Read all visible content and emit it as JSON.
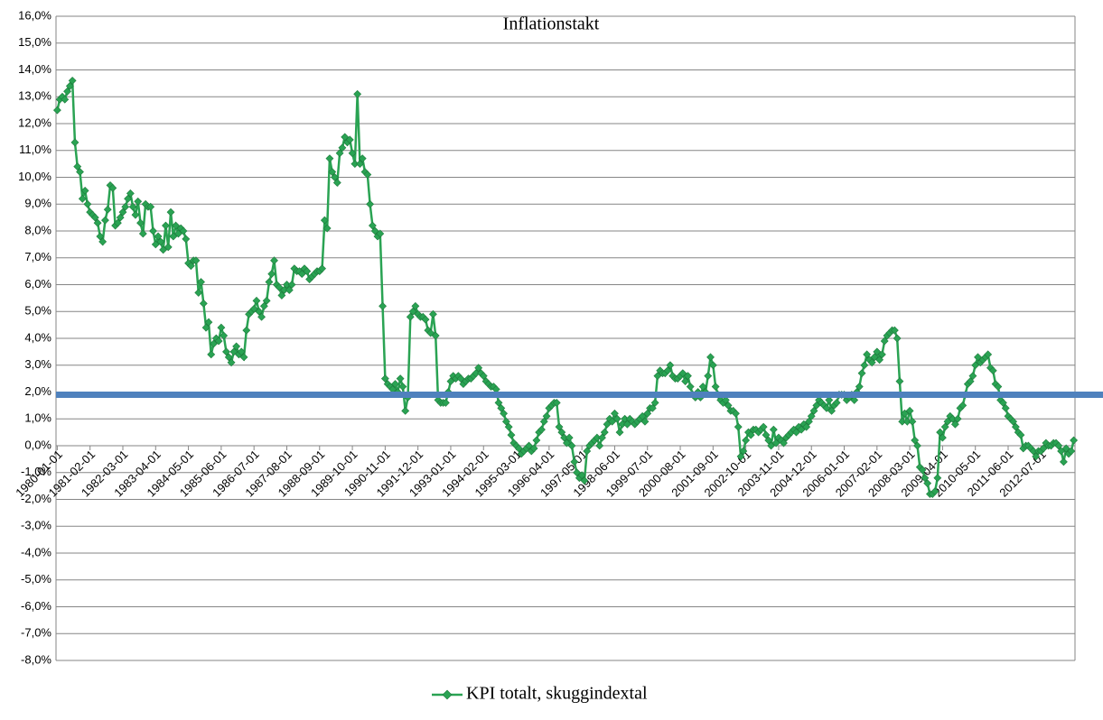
{
  "chart_data": {
    "type": "line",
    "title": "Inflationstakt",
    "categories": [
      "1980-01-01",
      null,
      null,
      null,
      null,
      null,
      null,
      null,
      null,
      null,
      null,
      null,
      null,
      "1981-02-01",
      null,
      null,
      null,
      null,
      null,
      null,
      null,
      null,
      null,
      null,
      null,
      null,
      "1982-03-01",
      null,
      null,
      null,
      null,
      null,
      null,
      null,
      null,
      null,
      null,
      null,
      null,
      "1983-04-01",
      null,
      null,
      null,
      null,
      null,
      null,
      null,
      null,
      null,
      null,
      null,
      null,
      "1984-05-01",
      null,
      null,
      null,
      null,
      null,
      null,
      null,
      null,
      null,
      null,
      null,
      null,
      "1985-06-01",
      null,
      null,
      null,
      null,
      null,
      null,
      null,
      null,
      null,
      null,
      null,
      null,
      "1986-07-01",
      null,
      null,
      null,
      null,
      null,
      null,
      null,
      null,
      null,
      null,
      null,
      null,
      "1987-08-01",
      null,
      null,
      null,
      null,
      null,
      null,
      null,
      null,
      null,
      null,
      null,
      null,
      "1988-09-01",
      null,
      null,
      null,
      null,
      null,
      null,
      null,
      null,
      null,
      null,
      null,
      null,
      "1989-10-01",
      null,
      null,
      null,
      null,
      null,
      null,
      null,
      null,
      null,
      null,
      null,
      null,
      "1990-11-01",
      null,
      null,
      null,
      null,
      null,
      null,
      null,
      null,
      null,
      null,
      null,
      null,
      "1991-12-01",
      null,
      null,
      null,
      null,
      null,
      null,
      null,
      null,
      null,
      null,
      null,
      null,
      "1993-01-01",
      null,
      null,
      null,
      null,
      null,
      null,
      null,
      null,
      null,
      null,
      null,
      null,
      "1994-02-01",
      null,
      null,
      null,
      null,
      null,
      null,
      null,
      null,
      null,
      null,
      null,
      null,
      "1995-03-01",
      null,
      null,
      null,
      null,
      null,
      null,
      null,
      null,
      null,
      null,
      null,
      null,
      "1996-04-01",
      null,
      null,
      null,
      null,
      null,
      null,
      null,
      null,
      null,
      null,
      null,
      null,
      "1997-05-01",
      null,
      null,
      null,
      null,
      null,
      null,
      null,
      null,
      null,
      null,
      null,
      null,
      "1998-06-01",
      null,
      null,
      null,
      null,
      null,
      null,
      null,
      null,
      null,
      null,
      null,
      null,
      "1999-07-01",
      null,
      null,
      null,
      null,
      null,
      null,
      null,
      null,
      null,
      null,
      null,
      null,
      "2000-08-01",
      null,
      null,
      null,
      null,
      null,
      null,
      null,
      null,
      null,
      null,
      null,
      null,
      "2001-09-01",
      null,
      null,
      null,
      null,
      null,
      null,
      null,
      null,
      null,
      null,
      null,
      null,
      "2002-10-01",
      null,
      null,
      null,
      null,
      null,
      null,
      null,
      null,
      null,
      null,
      null,
      null,
      "2003-11-01",
      null,
      null,
      null,
      null,
      null,
      null,
      null,
      null,
      null,
      null,
      null,
      null,
      "2004-12-01",
      null,
      null,
      null,
      null,
      null,
      null,
      null,
      null,
      null,
      null,
      null,
      null,
      "2006-01-01",
      null,
      null,
      null,
      null,
      null,
      null,
      null,
      null,
      null,
      null,
      null,
      null,
      "2007-02-01",
      null,
      null,
      null,
      null,
      null,
      null,
      null,
      null,
      null,
      null,
      null,
      null,
      "2008-03-01",
      null,
      null,
      null,
      null,
      null,
      null,
      null,
      null,
      null,
      null,
      null,
      null,
      "2009-04-01",
      null,
      null,
      null,
      null,
      null,
      null,
      null,
      null,
      null,
      null,
      null,
      null,
      "2010-05-01",
      null,
      null,
      null,
      null,
      null,
      null,
      null,
      null,
      null,
      null,
      null,
      null,
      "2011-06-01",
      null,
      null,
      null,
      null,
      null,
      null,
      null,
      null,
      null,
      null,
      null,
      null,
      "2012-07-01",
      null,
      null,
      null,
      null,
      null,
      null,
      null,
      null,
      null,
      null,
      null,
      null,
      null
    ],
    "series": [
      {
        "name": "KPI totalt, skuggindextal",
        "color": "#2aa353",
        "values": [
          12.5,
          12.9,
          13.0,
          12.9,
          13.2,
          13.4,
          13.6,
          11.3,
          10.4,
          10.2,
          9.2,
          9.5,
          9.0,
          8.7,
          8.6,
          8.5,
          8.3,
          7.8,
          7.6,
          8.4,
          8.8,
          9.7,
          9.6,
          8.2,
          8.3,
          8.5,
          8.7,
          8.9,
          9.2,
          9.4,
          8.9,
          8.6,
          9.1,
          8.3,
          7.9,
          9.0,
          8.9,
          8.9,
          8.0,
          7.5,
          7.8,
          7.6,
          7.3,
          8.2,
          7.4,
          8.7,
          7.8,
          8.2,
          7.9,
          8.1,
          8.0,
          7.7,
          6.8,
          6.7,
          6.9,
          6.9,
          5.7,
          6.1,
          5.3,
          4.4,
          4.6,
          3.4,
          3.8,
          4.0,
          3.9,
          4.4,
          4.1,
          3.5,
          3.3,
          3.1,
          3.5,
          3.7,
          3.4,
          3.5,
          3.3,
          4.3,
          4.9,
          5.0,
          5.1,
          5.4,
          5.0,
          4.8,
          5.2,
          5.4,
          6.1,
          6.4,
          6.9,
          6.0,
          5.9,
          5.6,
          5.8,
          6.0,
          5.8,
          6.0,
          6.6,
          6.5,
          6.5,
          6.4,
          6.6,
          6.5,
          6.2,
          6.3,
          6.4,
          6.5,
          6.5,
          6.6,
          8.4,
          8.1,
          10.7,
          10.2,
          10.0,
          9.8,
          10.9,
          11.1,
          11.5,
          11.3,
          11.4,
          10.9,
          10.5,
          13.1,
          10.5,
          10.7,
          10.2,
          10.1,
          9.0,
          8.2,
          8.0,
          7.8,
          7.9,
          5.2,
          2.5,
          2.3,
          2.2,
          2.1,
          2.3,
          2.0,
          2.5,
          2.2,
          1.3,
          1.8,
          4.8,
          5.0,
          5.2,
          4.9,
          4.8,
          4.8,
          4.7,
          4.3,
          4.2,
          4.9,
          4.1,
          1.7,
          1.6,
          1.6,
          1.6,
          2.0,
          2.4,
          2.6,
          2.5,
          2.6,
          2.5,
          2.3,
          2.4,
          2.5,
          2.5,
          2.6,
          2.7,
          2.9,
          2.7,
          2.6,
          2.4,
          2.3,
          2.2,
          2.2,
          2.1,
          1.6,
          1.4,
          1.2,
          0.9,
          0.7,
          0.4,
          0.1,
          0.0,
          -0.1,
          -0.3,
          -0.2,
          -0.1,
          0.0,
          -0.2,
          -0.1,
          0.2,
          0.5,
          0.6,
          0.9,
          1.1,
          1.4,
          1.5,
          1.6,
          1.6,
          0.7,
          0.5,
          0.3,
          0.1,
          0.3,
          0.0,
          -0.6,
          -1.0,
          -1.2,
          -1.1,
          -1.3,
          -0.2,
          0.0,
          0.1,
          0.2,
          0.3,
          0.0,
          0.3,
          0.5,
          0.8,
          1.0,
          0.9,
          1.2,
          1.0,
          0.5,
          0.8,
          1.0,
          0.8,
          1.0,
          0.9,
          0.8,
          0.9,
          1.0,
          1.1,
          0.9,
          1.2,
          1.4,
          1.4,
          1.6,
          2.6,
          2.8,
          2.7,
          2.7,
          2.8,
          3.0,
          2.6,
          2.5,
          2.5,
          2.6,
          2.7,
          2.4,
          2.6,
          2.2,
          1.9,
          1.8,
          2.0,
          1.8,
          2.2,
          2.0,
          2.6,
          3.3,
          3.0,
          2.2,
          1.9,
          1.7,
          1.6,
          1.7,
          1.5,
          1.3,
          1.3,
          1.2,
          0.7,
          -0.4,
          -0.2,
          0.2,
          0.5,
          0.4,
          0.6,
          0.6,
          0.5,
          0.6,
          0.7,
          0.4,
          0.2,
          0.0,
          0.6,
          0.1,
          0.3,
          0.2,
          0.1,
          0.3,
          0.4,
          0.5,
          0.6,
          0.5,
          0.7,
          0.6,
          0.8,
          0.7,
          0.9,
          1.1,
          1.3,
          1.5,
          1.7,
          1.6,
          1.5,
          1.4,
          1.7,
          1.3,
          1.5,
          1.6,
          1.9,
          1.9,
          1.9,
          1.7,
          1.8,
          1.9,
          1.7,
          2.0,
          2.2,
          2.7,
          3.0,
          3.4,
          3.2,
          3.1,
          3.3,
          3.5,
          3.2,
          3.4,
          3.9,
          4.1,
          4.2,
          4.3,
          4.3,
          4.0,
          2.4,
          0.9,
          1.2,
          0.9,
          1.3,
          0.9,
          0.2,
          0.0,
          -0.8,
          -0.9,
          -1.2,
          -1.4,
          -1.8,
          -1.8,
          -1.7,
          -1.2,
          0.5,
          0.3,
          0.7,
          0.9,
          1.1,
          1.0,
          0.8,
          1.0,
          1.4,
          1.5,
          1.9,
          2.3,
          2.4,
          2.6,
          3.0,
          3.3,
          3.1,
          3.2,
          3.3,
          3.4,
          2.9,
          2.8,
          2.3,
          2.2,
          1.7,
          1.6,
          1.4,
          1.1,
          1.0,
          0.9,
          0.7,
          0.5,
          0.4,
          -0.1,
          0.0,
          0.0,
          -0.1,
          -0.2,
          -0.4,
          -0.2,
          -0.2,
          -0.1,
          0.1,
          0.0,
          0.0,
          0.1,
          0.1,
          0.0,
          -0.2,
          -0.6,
          -0.1,
          -0.3,
          -0.2,
          0.2
        ]
      }
    ],
    "reference_line": {
      "value": 1.9,
      "color": "#4f81bd"
    },
    "ylim": [
      -8,
      16
    ],
    "yticks": [
      {
        "value": -8,
        "label": "-8,0%"
      },
      {
        "value": -7,
        "label": "-7,0%"
      },
      {
        "value": -6,
        "label": "-6,0%"
      },
      {
        "value": -5,
        "label": "-5,0%"
      },
      {
        "value": -4,
        "label": "-4,0%"
      },
      {
        "value": -3,
        "label": "-3,0%"
      },
      {
        "value": -2,
        "label": "-2,0%"
      },
      {
        "value": -1,
        "label": "-1,0%"
      },
      {
        "value": 0,
        "label": "0,0%"
      },
      {
        "value": 1,
        "label": "1,0%"
      },
      {
        "value": 2,
        "label": "2,0%"
      },
      {
        "value": 3,
        "label": "3,0%"
      },
      {
        "value": 4,
        "label": "4,0%"
      },
      {
        "value": 5,
        "label": "5,0%"
      },
      {
        "value": 6,
        "label": "6,0%"
      },
      {
        "value": 7,
        "label": "7,0%"
      },
      {
        "value": 8,
        "label": "8,0%"
      },
      {
        "value": 9,
        "label": "9,0%"
      },
      {
        "value": 10,
        "label": "10,0%"
      },
      {
        "value": 11,
        "label": "11,0%"
      },
      {
        "value": 12,
        "label": "12,0%"
      },
      {
        "value": 13,
        "label": "13,0%"
      },
      {
        "value": 14,
        "label": "14,0%"
      },
      {
        "value": 15,
        "label": "15,0%"
      },
      {
        "value": 16,
        "label": "16,0%"
      }
    ],
    "grid": true,
    "legend": "bottom"
  }
}
